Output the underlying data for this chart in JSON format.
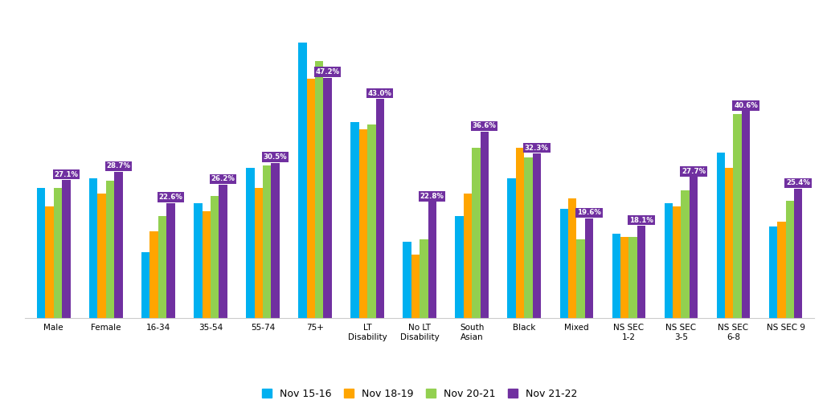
{
  "categories": [
    "Male",
    "Female",
    "16-34",
    "35-54",
    "55-74",
    "75+",
    "LT\nDisability",
    "No LT\nDisability",
    "South\nAsian",
    "Black",
    "Mixed",
    "NS SEC\n1-2",
    "NS SEC\n3-5",
    "NS SEC\n6-8",
    "NS SEC 9"
  ],
  "series": {
    "Nov 15-16": [
      25.5,
      27.5,
      13.0,
      22.5,
      29.5,
      54.0,
      38.5,
      15.0,
      20.0,
      27.5,
      21.5,
      16.5,
      22.5,
      32.5,
      18.0
    ],
    "Nov 18-19": [
      22.0,
      24.5,
      17.0,
      21.0,
      25.5,
      47.0,
      37.0,
      12.5,
      24.5,
      33.5,
      23.5,
      16.0,
      22.0,
      29.5,
      19.0
    ],
    "Nov 20-21": [
      25.5,
      27.0,
      20.0,
      24.0,
      30.0,
      50.5,
      38.0,
      15.5,
      33.5,
      31.5,
      15.5,
      16.0,
      25.0,
      40.0,
      23.0
    ],
    "Nov 21-22": [
      27.1,
      28.7,
      22.6,
      26.2,
      30.5,
      47.2,
      43.0,
      22.8,
      36.6,
      32.3,
      19.6,
      18.1,
      27.7,
      40.6,
      25.4
    ]
  },
  "labeled_series": "Nov 21-22",
  "label_values": [
    27.1,
    28.7,
    22.6,
    26.2,
    30.5,
    47.2,
    43.0,
    22.8,
    36.6,
    32.3,
    19.6,
    18.1,
    27.7,
    40.6,
    25.4
  ],
  "colors": {
    "Nov 15-16": "#00B0F0",
    "Nov 18-19": "#FFA500",
    "Nov 20-21": "#92D050",
    "Nov 21-22": "#7030A0"
  },
  "ylim": [
    0,
    60
  ],
  "background_color": "#FFFFFF",
  "legend_labels": [
    "Nov 15-16",
    "Nov 18-19",
    "Nov 20-21",
    "Nov 21-22"
  ]
}
